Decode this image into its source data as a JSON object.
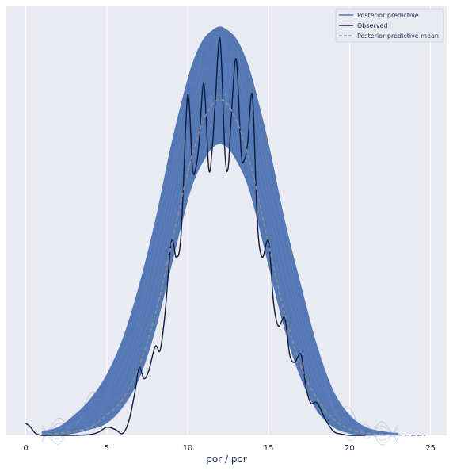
{
  "chart_data": {
    "type": "line",
    "title": "",
    "xlabel": "por / por",
    "ylabel": "",
    "xlim": [
      -1.2,
      26
    ],
    "ylim": [
      0,
      1.06
    ],
    "grid": "vertical",
    "xticks": [
      0,
      5,
      10,
      15,
      20,
      25
    ],
    "xtick_labels": [
      "0",
      "5",
      "10",
      "15",
      "20",
      "25"
    ],
    "legend": {
      "placement": "top-right",
      "entries": [
        {
          "label": "Posterior predictive",
          "style": "solid",
          "color": "#4c72b0"
        },
        {
          "label": "Observed",
          "style": "solid",
          "color": "#0f1c3c"
        },
        {
          "label": "Posterior predictive mean",
          "style": "dashed",
          "color": "#8c8c9a"
        }
      ]
    },
    "series": [
      {
        "name": "Posterior predictive",
        "kind": "band",
        "color": "#4c72b0",
        "x": [
          1.0,
          2.0,
          3.0,
          4.0,
          5.0,
          6.0,
          7.0,
          8.0,
          9.0,
          10.0,
          10.5,
          11.0,
          11.5,
          12.0,
          12.5,
          13.0,
          13.5,
          14.0,
          15.0,
          16.0,
          17.0,
          18.0,
          19.0,
          20.0,
          21.0,
          22.0,
          23.0
        ],
        "lower": [
          0.0,
          0.0,
          0.005,
          0.015,
          0.03,
          0.07,
          0.14,
          0.26,
          0.42,
          0.58,
          0.64,
          0.68,
          0.71,
          0.72,
          0.71,
          0.68,
          0.64,
          0.58,
          0.42,
          0.26,
          0.14,
          0.06,
          0.02,
          0.005,
          0.0,
          0.0,
          0.0
        ],
        "upper": [
          0.01,
          0.02,
          0.05,
          0.09,
          0.15,
          0.24,
          0.37,
          0.53,
          0.72,
          0.88,
          0.94,
          0.98,
          1.0,
          1.01,
          1.0,
          0.98,
          0.94,
          0.88,
          0.72,
          0.53,
          0.37,
          0.22,
          0.11,
          0.05,
          0.02,
          0.01,
          0.005
        ]
      },
      {
        "name": "Observed",
        "kind": "line",
        "color": "#0f1c3c",
        "x": [
          0.0,
          0.3,
          0.6,
          1.0,
          1.5,
          2.0,
          3.0,
          4.0,
          4.5,
          5.0,
          5.5,
          6.0,
          6.4,
          6.8,
          7.0,
          7.3,
          7.6,
          8.0,
          8.3,
          8.6,
          9.0,
          9.3,
          9.6,
          10.0,
          10.3,
          10.5,
          10.7,
          11.0,
          11.3,
          11.5,
          11.7,
          12.0,
          12.3,
          12.5,
          12.7,
          13.0,
          13.3,
          13.5,
          13.7,
          14.0,
          14.3,
          14.6,
          15.0,
          15.3,
          15.6,
          16.0,
          16.3,
          16.6,
          17.0,
          17.3,
          17.6,
          18.0,
          18.5,
          19.0,
          19.5,
          20.0,
          21.0
        ],
        "y": [
          0.03,
          0.02,
          0.005,
          0.0,
          0.0,
          0.0,
          0.0,
          0.002,
          0.008,
          0.02,
          0.015,
          0.005,
          0.04,
          0.12,
          0.17,
          0.14,
          0.16,
          0.22,
          0.21,
          0.3,
          0.48,
          0.44,
          0.5,
          0.84,
          0.66,
          0.66,
          0.72,
          0.87,
          0.66,
          0.7,
          0.82,
          0.98,
          0.7,
          0.66,
          0.79,
          0.93,
          0.7,
          0.68,
          0.72,
          0.84,
          0.53,
          0.44,
          0.48,
          0.33,
          0.27,
          0.29,
          0.2,
          0.18,
          0.2,
          0.12,
          0.08,
          0.08,
          0.04,
          0.01,
          0.003,
          0.0,
          0.0
        ]
      },
      {
        "name": "Posterior predictive mean",
        "kind": "dashed",
        "color": "#8c8c9a",
        "x": [
          1.0,
          2.0,
          3.0,
          4.0,
          5.0,
          6.0,
          7.0,
          8.0,
          9.0,
          10.0,
          11.0,
          12.0,
          13.0,
          14.0,
          15.0,
          16.0,
          17.0,
          18.0,
          19.0,
          20.0,
          21.0,
          22.0,
          23.0,
          24.0,
          24.7
        ],
        "y": [
          0.002,
          0.005,
          0.01,
          0.02,
          0.05,
          0.09,
          0.17,
          0.3,
          0.47,
          0.65,
          0.78,
          0.83,
          0.78,
          0.65,
          0.47,
          0.3,
          0.17,
          0.09,
          0.04,
          0.015,
          0.006,
          0.003,
          0.001,
          0.0,
          0.0
        ]
      }
    ]
  }
}
